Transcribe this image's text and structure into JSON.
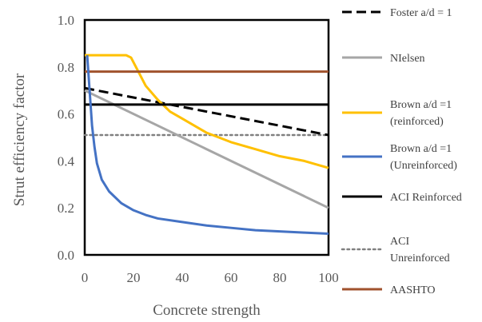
{
  "chart_data": {
    "type": "line",
    "title": "",
    "xlabel": "Concrete strength",
    "ylabel": "Strut efficiency factor",
    "xlim": [
      0,
      100
    ],
    "ylim": [
      0,
      1.0
    ],
    "xticks": [
      0,
      20,
      40,
      60,
      80,
      100
    ],
    "xtick_labels": [
      "0",
      "20",
      "40",
      "60",
      "80",
      "100"
    ],
    "yticks": [
      0,
      0.2,
      0.4,
      0.6,
      0.8,
      1.0
    ],
    "ytick_labels": [
      "0.0",
      "0.2",
      "0.4",
      "0.6",
      "0.8",
      "1.0"
    ],
    "grid": false,
    "legend_position": "right",
    "series": [
      {
        "name": "Foster a/d = 1",
        "color": "#000000",
        "style": "dashed",
        "x": [
          0,
          100
        ],
        "y": [
          0.71,
          0.51
        ]
      },
      {
        "name": "NIelsen",
        "color": "#a6a6a6",
        "style": "solid",
        "x": [
          0,
          100
        ],
        "y": [
          0.7,
          0.2
        ]
      },
      {
        "name": "Brown a/d =1 (reinforced)",
        "color": "#ffc000",
        "style": "solid",
        "x": [
          0,
          5,
          10,
          15,
          17,
          19,
          20,
          22,
          25,
          30,
          35,
          40,
          50,
          60,
          70,
          80,
          90,
          100
        ],
        "y": [
          0.85,
          0.85,
          0.85,
          0.85,
          0.85,
          0.84,
          0.82,
          0.78,
          0.72,
          0.66,
          0.61,
          0.58,
          0.52,
          0.48,
          0.45,
          0.42,
          0.4,
          0.37
        ]
      },
      {
        "name": "Brown a/d =1 (Unreinforced)",
        "color": "#4472c4",
        "style": "solid",
        "x": [
          1,
          2,
          3,
          4,
          5,
          7,
          10,
          15,
          20,
          25,
          30,
          40,
          50,
          60,
          70,
          80,
          90,
          100
        ],
        "y": [
          0.85,
          0.7,
          0.55,
          0.46,
          0.39,
          0.32,
          0.27,
          0.22,
          0.19,
          0.17,
          0.155,
          0.14,
          0.125,
          0.115,
          0.105,
          0.1,
          0.095,
          0.09
        ]
      },
      {
        "name": "ACI Reinforced",
        "color": "#000000",
        "style": "solid",
        "x": [
          0,
          100
        ],
        "y": [
          0.64,
          0.64
        ]
      },
      {
        "name": "ACI Unreinforced",
        "color": "#808080",
        "style": "dotted",
        "x": [
          0,
          100
        ],
        "y": [
          0.51,
          0.51
        ]
      },
      {
        "name": "AASHTO",
        "color": "#a0522d",
        "style": "solid",
        "x": [
          0,
          100
        ],
        "y": [
          0.78,
          0.78
        ]
      }
    ],
    "legend": [
      {
        "series": 0,
        "lines": [
          "Foster a/d = 1"
        ]
      },
      {
        "series": 1,
        "lines": [
          "NIelsen"
        ]
      },
      {
        "series": 2,
        "lines": [
          "Brown a/d =1",
          "(reinforced)"
        ]
      },
      {
        "series": 3,
        "lines": [
          "Brown a/d =1",
          "(Unreinforced)"
        ]
      },
      {
        "series": 4,
        "lines": [
          "ACI Reinforced"
        ]
      },
      {
        "series": 5,
        "lines": [
          "ACI",
          "Unreinforced"
        ]
      },
      {
        "series": 6,
        "lines": [
          "AASHTO"
        ]
      }
    ]
  }
}
